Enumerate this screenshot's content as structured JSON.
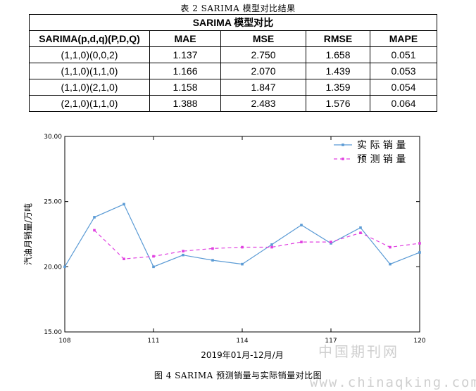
{
  "table_caption": "表 2 SARIMA 模型对比结果",
  "table": {
    "title": "SARIMA 模型对比",
    "headers": [
      "SARIMA(p,d,q)(P,D,Q)",
      "MAE",
      "MSE",
      "RMSE",
      "MAPE"
    ],
    "rows": [
      [
        "(1,1,0)(0,0,2)",
        "1.137",
        "2.750",
        "1.658",
        "0.051"
      ],
      [
        "(1,1,0)(1,1,0)",
        "1.166",
        "2.070",
        "1.439",
        "0.053"
      ],
      [
        "(1,1,0)(2,1,0)",
        "1.158",
        "1.847",
        "1.359",
        "0.054"
      ],
      [
        "(2,1,0)(1,1,0)",
        "1.388",
        "2.483",
        "1.576",
        "0.064"
      ]
    ]
  },
  "figure_caption": "图 4 SARIMA 预测销量与实际销量对比图",
  "watermark": {
    "cn": "中国期刊网",
    "url": "www.chinaqking.com"
  },
  "chart_data": {
    "type": "line",
    "title": "",
    "xlabel": "2019年01月-12月/月",
    "ylabel": "汽油月销量/万吨",
    "xlim": [
      108,
      120
    ],
    "ylim": [
      15,
      30
    ],
    "x_ticks": [
      "108",
      "111",
      "114",
      "117",
      "120"
    ],
    "y_ticks": [
      "15.00",
      "20.00",
      "25.00",
      "30.00"
    ],
    "x_tick_values": [
      108,
      111,
      114,
      117,
      120
    ],
    "y_tick_values": [
      15,
      20,
      25,
      30
    ],
    "legend_position": "top-right",
    "series": [
      {
        "name": "实 际 销 量",
        "color": "#5b9bd5",
        "dash": false,
        "x": [
          108,
          109,
          110,
          111,
          112,
          113,
          114,
          115,
          116,
          117,
          118,
          119,
          120
        ],
        "y": [
          20.0,
          23.8,
          24.8,
          20.0,
          20.9,
          20.5,
          20.2,
          21.7,
          23.2,
          21.8,
          23.0,
          20.2,
          21.1
        ]
      },
      {
        "name": "预 测 销 量",
        "color": "#e040e0",
        "dash": true,
        "x": [
          109,
          110,
          111,
          112,
          113,
          114,
          115,
          116,
          117,
          118,
          119,
          120
        ],
        "y": [
          22.8,
          20.6,
          20.8,
          21.2,
          21.4,
          21.5,
          21.5,
          21.9,
          21.9,
          22.6,
          21.5,
          21.8
        ]
      }
    ]
  }
}
